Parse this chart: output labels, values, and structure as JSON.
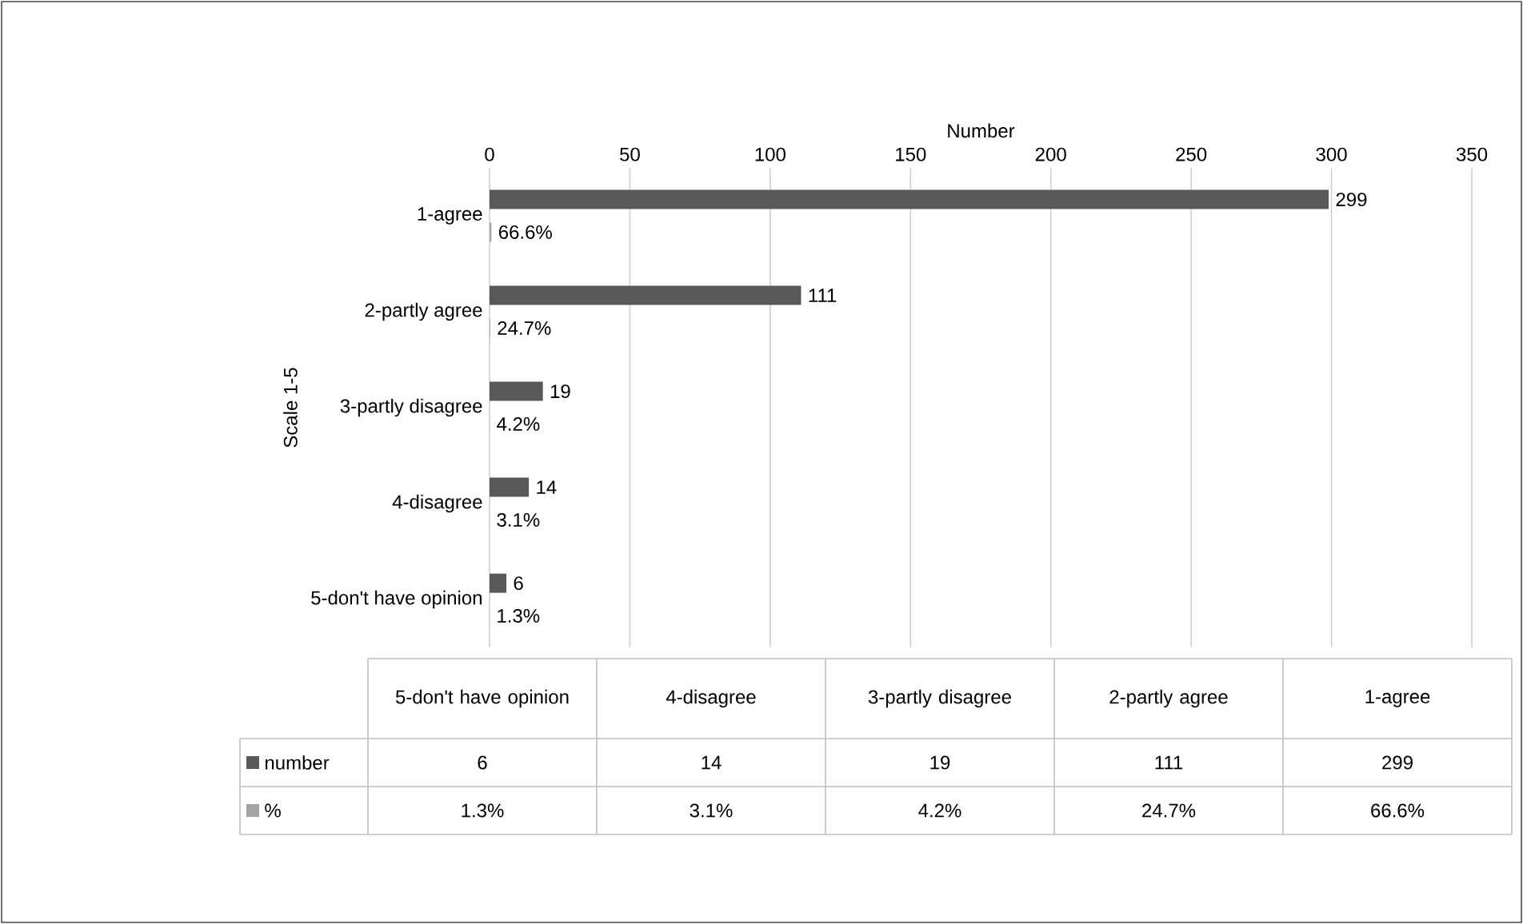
{
  "chart_data": {
    "type": "bar",
    "orientation": "horizontal",
    "xlabel": "Number",
    "ylabel": "Scale 1-5",
    "categories": [
      "1-agree",
      "2-partly agree",
      "3-partly disagree",
      "4-disagree",
      "5-don't have opinion"
    ],
    "xlim": [
      0,
      350
    ],
    "xticks": [
      0,
      50,
      100,
      150,
      200,
      250,
      300,
      350
    ],
    "grid": "x",
    "legend": "bottom",
    "series": [
      {
        "name": "number",
        "color": "#595959",
        "values": [
          299,
          111,
          19,
          14,
          6
        ],
        "value_labels": [
          "299",
          "111",
          "19",
          "14",
          "6"
        ]
      },
      {
        "name": "%",
        "color": "#a5a5a5",
        "values": [
          0.666,
          0.247,
          0.042,
          0.031,
          0.013
        ],
        "value_labels": [
          "66.6%",
          "24.7%",
          "4.2%",
          "3.1%",
          "1.3%"
        ]
      }
    ]
  }
}
